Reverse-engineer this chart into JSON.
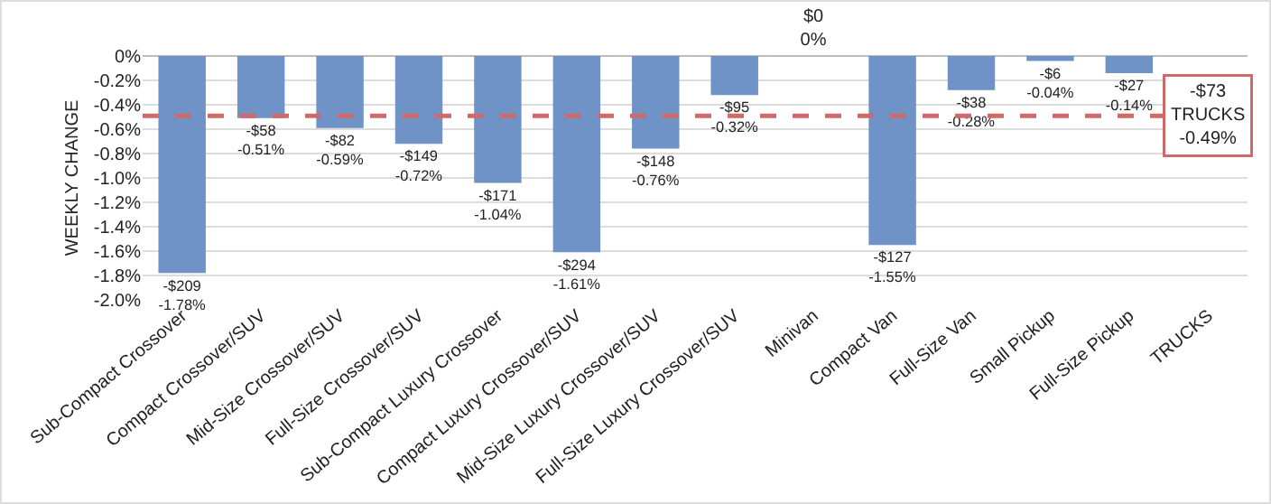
{
  "chart_data": {
    "type": "bar",
    "ylabel": "WEEKLY CHANGE",
    "categories": [
      "Sub-Compact Crossover",
      "Compact Crossover/SUV",
      "Mid-Size Crossover/SUV",
      "Full-Size Crossover/SUV",
      "Sub-Compact Luxury Crossover",
      "Compact Luxury Crossover/SUV",
      "Mid-Size Luxury Crossover/SUV",
      "Full-Size Luxury Crossover/SUV",
      "Minivan",
      "Compact Van",
      "Full-Size Van",
      "Small Pickup",
      "Full-Size Pickup",
      "TRUCKS"
    ],
    "values": [
      -1.78,
      -0.51,
      -0.59,
      -0.72,
      -1.04,
      -1.61,
      -0.76,
      -0.32,
      0,
      -1.55,
      -0.28,
      -0.04,
      -0.14,
      null
    ],
    "value_labels": [
      "-$209\n-1.78%",
      "-$58\n-0.51%",
      "-$82\n-0.59%",
      "-$149\n-0.72%",
      "-$171\n-1.04%",
      "-$294\n-1.61%",
      "-$148\n-0.76%",
      "-$95\n-0.32%",
      "$0\n0%",
      "-$127\n-1.55%",
      "-$38\n-0.28%",
      "-$6\n-0.04%",
      "-$27\n-0.14%",
      null
    ],
    "color": "#6f93c6",
    "ylim": [
      -2.0,
      0
    ],
    "yticks": [
      {
        "value": 0,
        "label": "0%"
      },
      {
        "value": -0.2,
        "label": "-0.2%"
      },
      {
        "value": -0.4,
        "label": "-0.4%"
      },
      {
        "value": -0.6,
        "label": "-0.6%"
      },
      {
        "value": -0.8,
        "label": "-0.8%"
      },
      {
        "value": -1.0,
        "label": "-1.0%"
      },
      {
        "value": -1.2,
        "label": "-1.2%"
      },
      {
        "value": -1.4,
        "label": "-1.4%"
      },
      {
        "value": -1.6,
        "label": "-1.6%"
      },
      {
        "value": -1.8,
        "label": "-1.8%"
      },
      {
        "value": -2.0,
        "label": "-2.0%"
      }
    ],
    "grid": "y",
    "ref_lines": [
      {
        "axis": "y",
        "value": -0.49,
        "color": "#d06a6a",
        "line_style": "dashed",
        "label": "-$73\nTRUCKS\n-0.49%"
      }
    ]
  }
}
